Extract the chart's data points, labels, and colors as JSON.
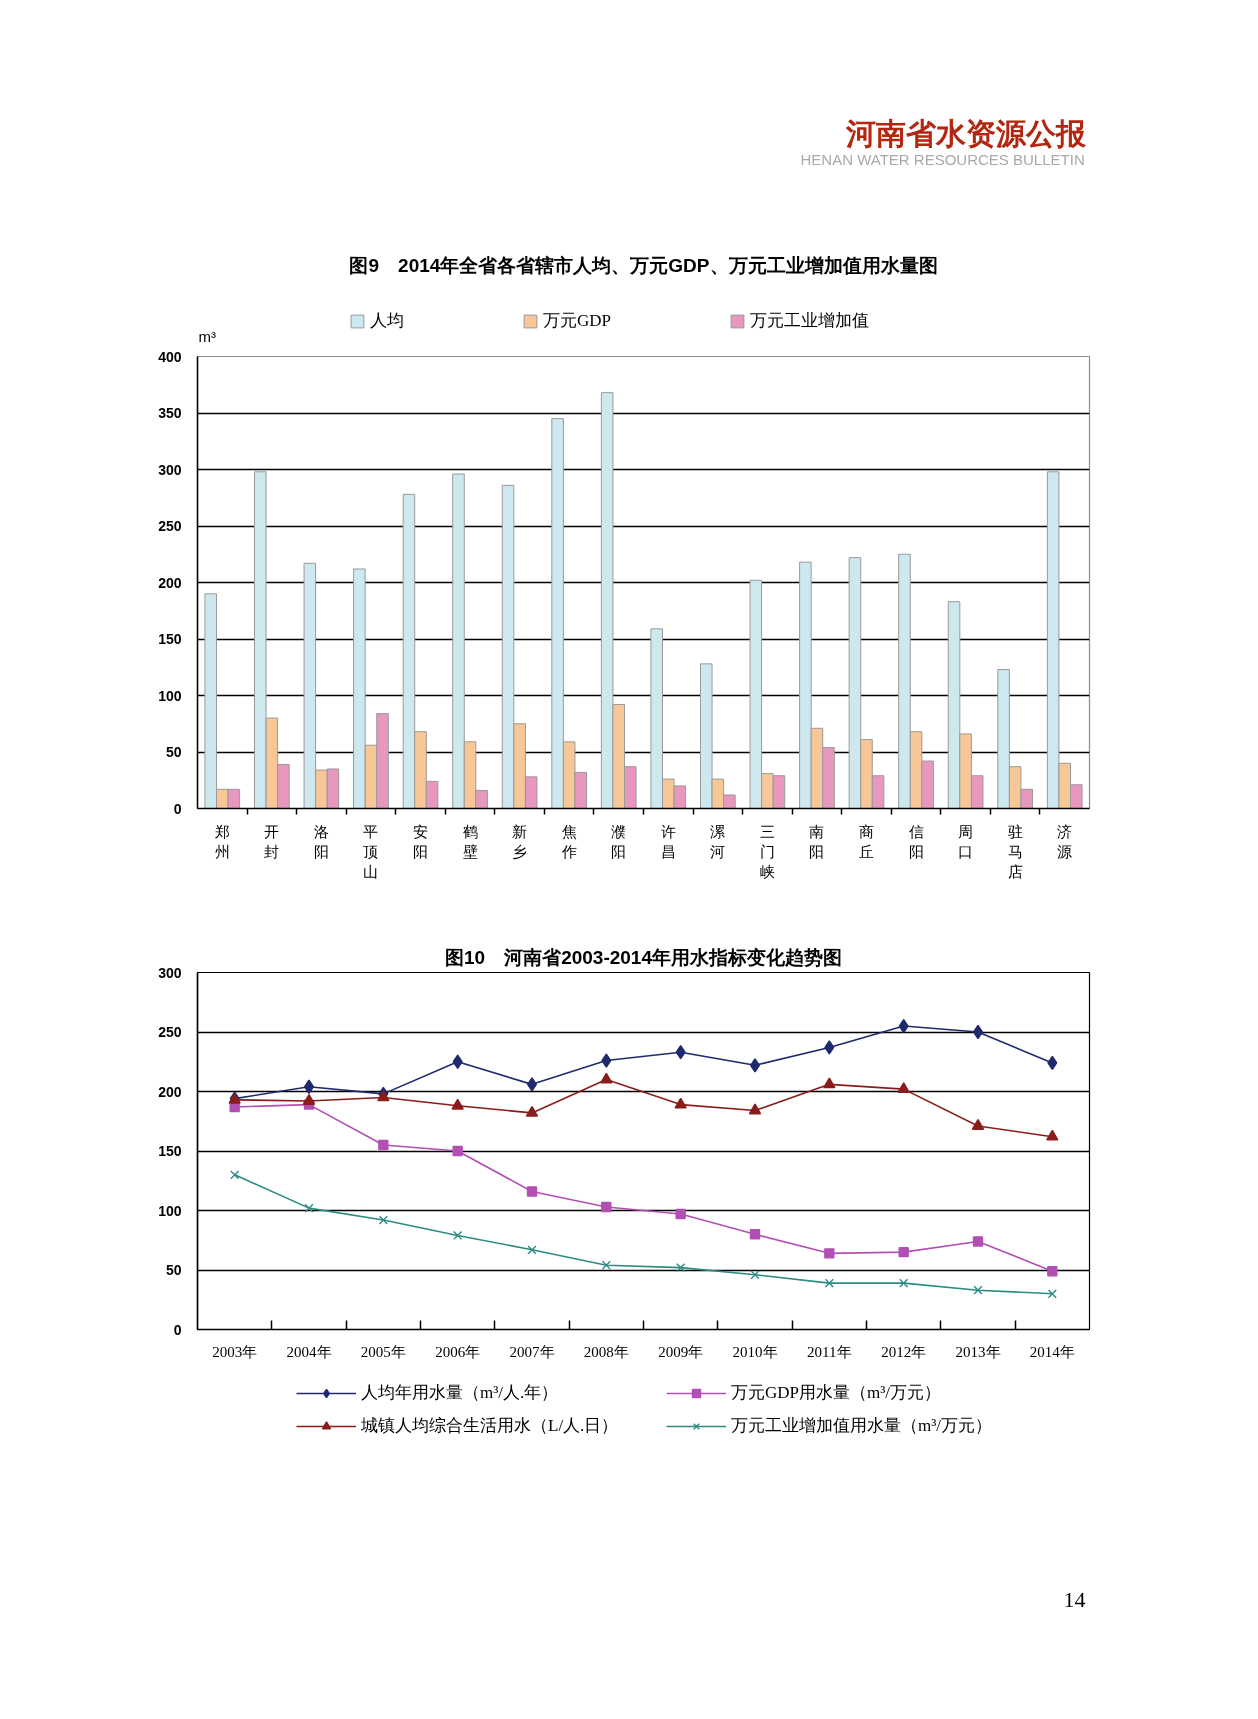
{
  "chart_data": [
    {
      "type": "bar",
      "title": "图9　2014年全省各省辖市人均、万元GDP、万元工业增加值用水量图",
      "ylabel": "m³",
      "annotations": [
        "河南省水资源公报",
        "HENAN WATER RESOURCES BULLETIN"
      ],
      "categories": [
        "郑州",
        "开封",
        "洛阳",
        "平顶山",
        "安阳",
        "鹤壁",
        "新乡",
        "焦作",
        "濮阳",
        "许昌",
        "漯河",
        "三门峡",
        "南阳",
        "商丘",
        "信阳",
        "周口",
        "驻马店",
        "济源"
      ],
      "series": [
        {
          "name": "人均",
          "color": "#cde8ee",
          "values": [
            190,
            298,
            217,
            212,
            278,
            296,
            286,
            345,
            368,
            159,
            128,
            202,
            218,
            222,
            225,
            183,
            123,
            298
          ]
        },
        {
          "name": "万元GDP",
          "color": "#f7c797",
          "values": [
            17,
            80,
            34,
            56,
            68,
            59,
            75,
            59,
            92,
            26,
            26,
            31,
            71,
            61,
            68,
            66,
            37,
            40
          ]
        },
        {
          "name": "万元工业增加值",
          "color": "#e897bf",
          "values": [
            17,
            39,
            35,
            84,
            24,
            16,
            28,
            32,
            37,
            20,
            12,
            29,
            54,
            29,
            42,
            29,
            17,
            21
          ]
        }
      ],
      "ylim": [
        0,
        400
      ],
      "yticks": [
        0,
        50,
        100,
        150,
        200,
        250,
        300,
        350,
        400
      ],
      "grid": "y",
      "legend": "top"
    },
    {
      "type": "line",
      "title": "图10　河南省2003-2014年用水指标变化趋势图",
      "annotations": [
        "14"
      ],
      "categories": [
        "2003年",
        "2004年",
        "2005年",
        "2006年",
        "2007年",
        "2008年",
        "2009年",
        "2010年",
        "2011年",
        "2012年",
        "2013年",
        "2014年"
      ],
      "series": [
        {
          "name": "人均年用水量（m³/人.年）",
          "color": "#1f2a6e",
          "marker": "diamond",
          "values": [
            194,
            204,
            198,
            225,
            206,
            226,
            233,
            222,
            237,
            255,
            250,
            224
          ]
        },
        {
          "name": "万元GDP用水量（m³/万元）",
          "color": "#b24fb3",
          "marker": "square",
          "values": [
            187,
            189,
            155,
            150,
            116,
            103,
            97,
            80,
            64,
            65,
            74,
            49
          ]
        },
        {
          "name": "城镇人均综合生活用水（L/人.日）",
          "color": "#8b1c1c",
          "marker": "triangle",
          "values": [
            193,
            192,
            195,
            188,
            182,
            210,
            189,
            184,
            206,
            202,
            171,
            162
          ]
        },
        {
          "name": "万元工业增加值用水量（m³/万元）",
          "color": "#2b8c84",
          "marker": "cross",
          "values": [
            130,
            102,
            92,
            79,
            67,
            54,
            52,
            46,
            39,
            39,
            33,
            30
          ]
        }
      ],
      "ylim": [
        0,
        300
      ],
      "yticks": [
        0,
        50,
        100,
        150,
        200,
        250,
        300
      ],
      "grid": "y",
      "legend": "bottom"
    }
  ]
}
